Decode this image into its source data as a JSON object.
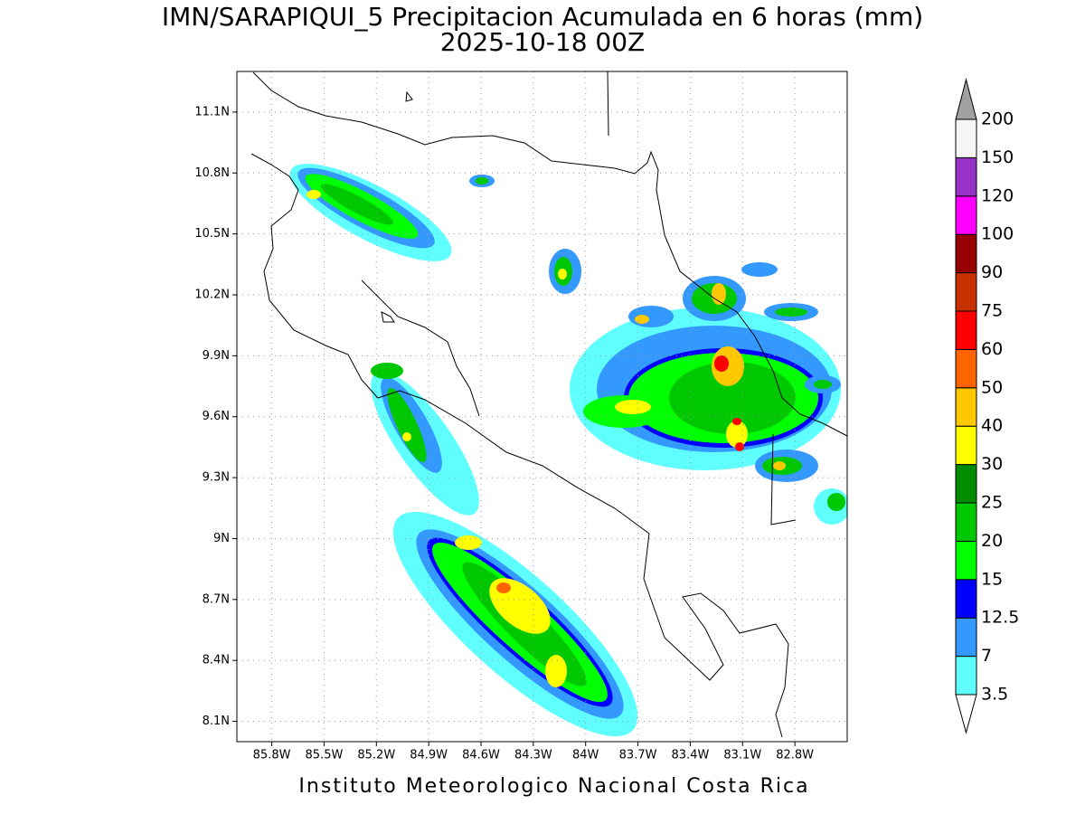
{
  "title": "IMN/SARAPIQUI_5 Precipitacion Acumulada en 6 horas (mm)",
  "subtitle": "2025-10-18 00Z",
  "footer": "Instituto Meteorologico Nacional Costa Rica",
  "map": {
    "lonlim": [
      -86,
      -82.5
    ],
    "latlim": [
      8,
      11.3
    ],
    "grid": true,
    "lon_ticks": [
      {
        "value": -85.8,
        "label": "85.8W"
      },
      {
        "value": -85.5,
        "label": "85.5W"
      },
      {
        "value": -85.2,
        "label": "85.2W"
      },
      {
        "value": -84.9,
        "label": "84.9W"
      },
      {
        "value": -84.6,
        "label": "84.6W"
      },
      {
        "value": -84.3,
        "label": "84.3W"
      },
      {
        "value": -84,
        "label": "84W"
      },
      {
        "value": -83.7,
        "label": "83.7W"
      },
      {
        "value": -83.4,
        "label": "83.4W"
      },
      {
        "value": -83.1,
        "label": "83.1W"
      },
      {
        "value": -82.8,
        "label": "82.8W"
      }
    ],
    "lat_ticks": [
      {
        "value": 8.1,
        "label": "8.1N"
      },
      {
        "value": 8.4,
        "label": "8.4N"
      },
      {
        "value": 8.7,
        "label": "8.7N"
      },
      {
        "value": 9,
        "label": "9N"
      },
      {
        "value": 9.3,
        "label": "9.3N"
      },
      {
        "value": 9.6,
        "label": "9.6N"
      },
      {
        "value": 9.9,
        "label": "9.9N"
      },
      {
        "value": 10.2,
        "label": "10.2N"
      },
      {
        "value": 10.5,
        "label": "10.5N"
      },
      {
        "value": 10.8,
        "label": "10.8N"
      },
      {
        "value": 11.1,
        "label": "11.1N"
      }
    ]
  },
  "colorbar": {
    "levels": [
      3.5,
      7,
      12.5,
      15,
      20,
      25,
      30,
      40,
      50,
      60,
      75,
      90,
      100,
      120,
      150,
      200
    ],
    "colors": [
      "#60ffff",
      "#3399ff",
      "#0000ff",
      "#00ff00",
      "#00c800",
      "#008c00",
      "#ffff00",
      "#ffc800",
      "#ff6400",
      "#ff0000",
      "#c83200",
      "#960000",
      "#ff00ff",
      "#9632c8",
      "#f5f5f5"
    ],
    "under_color": "#ffffff",
    "over_color": "#a0a0a0"
  }
}
